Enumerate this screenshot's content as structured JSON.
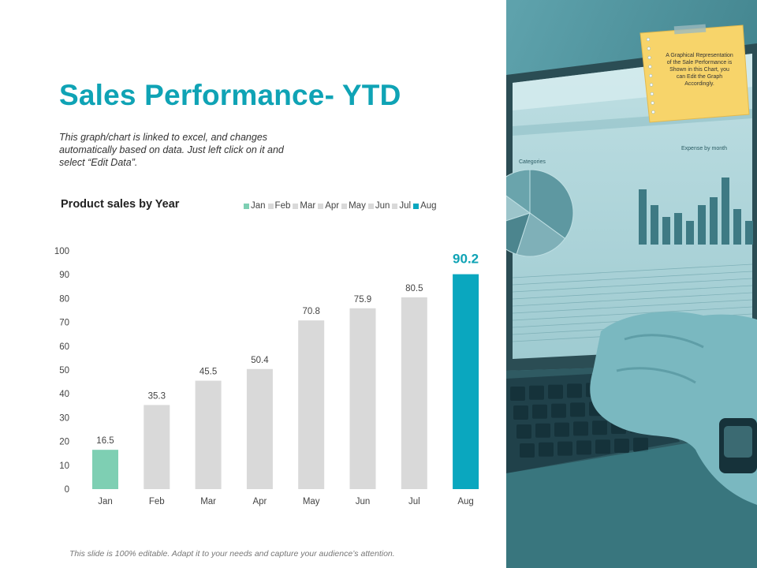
{
  "slide": {
    "title": "Sales Performance- YTD",
    "description": "This graph/chart is linked to excel, and changes automatically based on data. Just left click on it and select “Edit Data”.",
    "footer": "This slide is 100% editable. Adapt it to your needs and capture your audience’s attention."
  },
  "chart_data": {
    "type": "bar",
    "title": "Product sales by Year",
    "categories": [
      "Jan",
      "Feb",
      "Mar",
      "Apr",
      "May",
      "Jun",
      "Jul",
      "Aug"
    ],
    "values": [
      16.5,
      35.3,
      45.5,
      50.4,
      70.8,
      75.9,
      80.5,
      90.2
    ],
    "value_labels": [
      "16.5",
      "35.3",
      "45.5",
      "50.4",
      "70.8",
      "75.9",
      "80.5",
      "90.2"
    ],
    "ylim": [
      0,
      100
    ],
    "yticks": [
      0,
      10,
      20,
      30,
      40,
      50,
      60,
      70,
      80,
      90,
      100
    ],
    "grid": false,
    "legend": "top",
    "colors": [
      "#7ecfb3",
      "#d9d9d9",
      "#d9d9d9",
      "#d9d9d9",
      "#d9d9d9",
      "#d9d9d9",
      "#d9d9d9",
      "#0aa7bf"
    ],
    "highlight_label_color": "#0fa3b5",
    "highlight_index": 7
  },
  "photo": {
    "note_text": "A Graphical Representation of the Sale Performance is Shown in this Chart, you can Edit the Graph Accordingly.",
    "screen_categories_label": "Categories",
    "screen_expense_label": "Expense by month",
    "screen_expense_values": [
      70,
      50,
      35,
      40,
      30,
      50,
      60,
      85,
      45,
      30
    ],
    "pie_slices": [
      35,
      20,
      15,
      15,
      15
    ]
  }
}
